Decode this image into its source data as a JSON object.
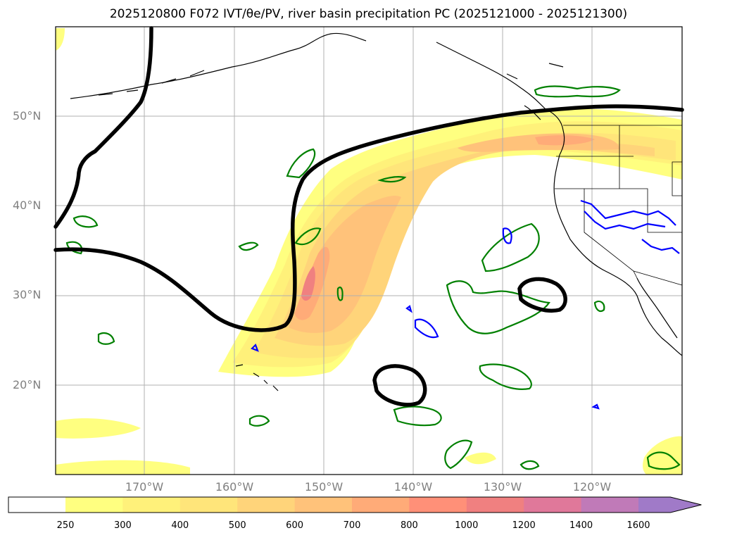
{
  "title": "2025120800 F072 IVT/θe/PV, river basin precipitation PC (2025121000 - 2025121300)",
  "lat_labels": [
    "50°N",
    "40°N",
    "30°N",
    "20°N"
  ],
  "lon_labels": [
    "170°W",
    "160°W",
    "150°W",
    "140°W",
    "130°W",
    "120°W"
  ],
  "colorbar": {
    "levels": [
      "250",
      "300",
      "400",
      "500",
      "600",
      "700",
      "800",
      "1000",
      "1200",
      "1400",
      "1600"
    ],
    "colors": [
      "#ffff80",
      "#fff17a",
      "#ffe57a",
      "#ffd47a",
      "#ffc27a",
      "#ffab78",
      "#ff9078",
      "#f08080",
      "#e0789a",
      "#c07ab8",
      "#a07ac8"
    ]
  },
  "map": {
    "extent_lon": [
      -180,
      -110
    ],
    "extent_lat": [
      10,
      60
    ],
    "grid_lon": [
      -170,
      -160,
      -150,
      -140,
      -130,
      -120
    ],
    "grid_lat": [
      20,
      30,
      40,
      50
    ],
    "colors": {
      "coast": "#000000",
      "pv_contour": "#000000",
      "green_contour": "#008000",
      "blue_contour": "#0000ff",
      "grid": "#b0b0b0"
    }
  }
}
